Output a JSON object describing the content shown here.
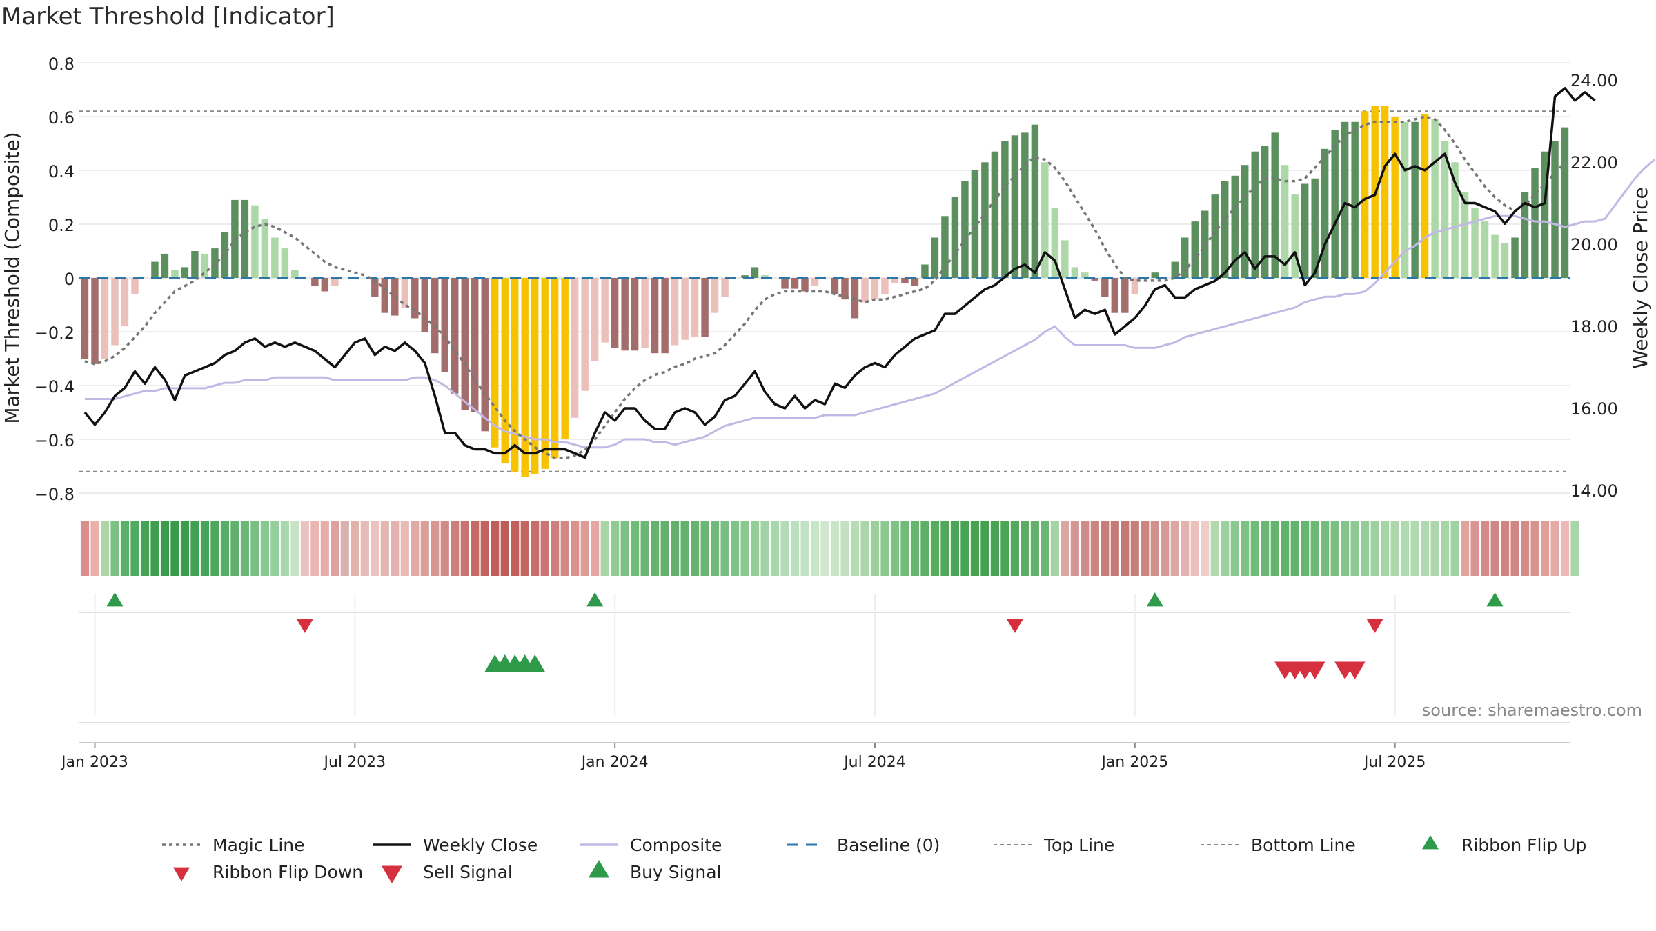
{
  "chart_data": {
    "type": "bar",
    "title": "Market Threshold [Indicator]",
    "ylabel": "Market Threshold (Composite)",
    "y2label": "Weekly Close Price",
    "source": "source: sharemaestro.com",
    "ylim": [
      -0.85,
      0.82
    ],
    "y2lim": [
      13.85,
      24.7
    ],
    "yticks": [
      0.8,
      0.6,
      0.4,
      0.2,
      0,
      -0.2,
      -0.4,
      -0.6,
      -0.8
    ],
    "ytick_labels": [
      "0.8",
      "0.6",
      "0.4",
      "0.2",
      "0",
      "−0.2",
      "−0.4",
      "−0.6",
      "−0.8"
    ],
    "y2ticks": [
      24,
      22,
      20,
      18,
      16,
      14
    ],
    "y2tick_labels": [
      "24.00",
      "22.00",
      "20.00",
      "18.00",
      "16.00",
      "14.00"
    ],
    "xtick_labels": [
      "Jan 2023",
      "Jul 2023",
      "Jan 2024",
      "Jul 2024",
      "Jan 2025",
      "Jul 2025"
    ],
    "xtick_weeks": [
      1,
      27,
      53,
      79,
      105,
      131
    ],
    "top_line": 0.62,
    "bottom_line": -0.72,
    "baseline": 0,
    "grid": true,
    "legend_position": "bottom",
    "legend": [
      "Magic Line",
      "Weekly Close",
      "Composite",
      "Baseline (0)",
      "Top Line",
      "Bottom Line",
      "Ribbon Flip Up",
      "Ribbon Flip Down",
      "Sell Signal",
      "Buy Signal"
    ],
    "colors": {
      "strong_pos": "#5b8f5e",
      "weak_pos": "#acd7a7",
      "strong_neg": "#a36d6b",
      "weak_neg": "#ebbfba",
      "extreme": "#f7c300",
      "close_line": "#111111",
      "composite_line": "#c2b8e6",
      "magic_line": "#777777",
      "baseline": "#2a77a8",
      "up_marker": "#2e9a4a",
      "down_marker": "#d62f3d"
    },
    "series": [
      {
        "name": "Composite",
        "kind": "bar",
        "values": [
          -0.3,
          -0.32,
          -0.3,
          -0.25,
          -0.18,
          -0.06,
          0,
          0.06,
          0.09,
          0.03,
          0.04,
          0.1,
          0.09,
          0.11,
          0.17,
          0.29,
          0.29,
          0.27,
          0.22,
          0.15,
          0.11,
          0.03,
          0,
          -0.03,
          -0.05,
          -0.03,
          0,
          0,
          0,
          -0.07,
          -0.13,
          -0.14,
          -0.11,
          -0.15,
          -0.2,
          -0.28,
          -0.35,
          -0.43,
          -0.49,
          -0.5,
          -0.57,
          -0.63,
          -0.69,
          -0.72,
          -0.74,
          -0.73,
          -0.71,
          -0.67,
          -0.6,
          -0.52,
          -0.42,
          -0.31,
          -0.24,
          -0.26,
          -0.27,
          -0.27,
          -0.26,
          -0.28,
          -0.28,
          -0.25,
          -0.23,
          -0.22,
          -0.22,
          -0.13,
          -0.07,
          0,
          0.01,
          0.04,
          0.01,
          0,
          -0.04,
          -0.04,
          -0.05,
          -0.03,
          0,
          -0.06,
          -0.08,
          -0.15,
          -0.09,
          -0.08,
          -0.06,
          -0.02,
          -0.02,
          -0.03,
          0.05,
          0.15,
          0.23,
          0.3,
          0.36,
          0.4,
          0.43,
          0.47,
          0.51,
          0.53,
          0.54,
          0.57,
          0.43,
          0.26,
          0.14,
          0.04,
          0.02,
          -0.01,
          -0.07,
          -0.13,
          -0.13,
          -0.06,
          0,
          0.02,
          0,
          0.06,
          0.15,
          0.21,
          0.25,
          0.31,
          0.36,
          0.38,
          0.42,
          0.47,
          0.49,
          0.54,
          0.42,
          0.31,
          0.35,
          0.37,
          0.48,
          0.55,
          0.58,
          0.58,
          0.62,
          0.64,
          0.64,
          0.6,
          0.58,
          0.58,
          0.61,
          0.59,
          0.51,
          0.43,
          0.32,
          0.26,
          0.21,
          0.16,
          0.13,
          0.15,
          0.32,
          0.41,
          0.47,
          0.51,
          0.56
        ]
      },
      {
        "name": "Weekly Close",
        "kind": "line",
        "axis": "right",
        "values": [
          15.9,
          15.6,
          15.9,
          16.3,
          16.5,
          16.9,
          16.6,
          17.0,
          16.7,
          16.2,
          16.8,
          16.9,
          17.0,
          17.1,
          17.3,
          17.4,
          17.6,
          17.7,
          17.5,
          17.6,
          17.5,
          17.6,
          17.5,
          17.4,
          17.2,
          17.0,
          17.3,
          17.6,
          17.7,
          17.3,
          17.5,
          17.4,
          17.6,
          17.4,
          17.1,
          16.3,
          15.4,
          15.4,
          15.1,
          15.0,
          15.0,
          14.9,
          14.9,
          15.1,
          14.9,
          14.9,
          15.0,
          15.0,
          15.0,
          14.9,
          14.8,
          15.4,
          15.9,
          15.7,
          16.0,
          16.0,
          15.7,
          15.5,
          15.5,
          15.9,
          16.0,
          15.9,
          15.6,
          15.8,
          16.2,
          16.3,
          16.6,
          16.9,
          16.4,
          16.1,
          16.0,
          16.3,
          16.0,
          16.2,
          16.1,
          16.6,
          16.5,
          16.8,
          17.0,
          17.1,
          17.0,
          17.3,
          17.5,
          17.7,
          17.8,
          17.9,
          18.3,
          18.3,
          18.5,
          18.7,
          18.9,
          19.0,
          19.2,
          19.4,
          19.5,
          19.3,
          19.8,
          19.6,
          18.9,
          18.2,
          18.4,
          18.3,
          18.4,
          17.8,
          18.0,
          18.2,
          18.5,
          18.9,
          19.0,
          18.7,
          18.7,
          18.9,
          19.0,
          19.1,
          19.3,
          19.6,
          19.8,
          19.4,
          19.7,
          19.7,
          19.5,
          19.8,
          19.0,
          19.3,
          20.0,
          20.5,
          21.0,
          20.9,
          21.1,
          21.2,
          21.9,
          22.2,
          21.8,
          21.9,
          21.8,
          22.0,
          22.2,
          21.5,
          21.0,
          21.0,
          20.9,
          20.8,
          20.5,
          20.8,
          21.0,
          20.9,
          21.0,
          23.6,
          23.8,
          23.5,
          23.7,
          23.5
        ]
      },
      {
        "name": "Composite",
        "kind": "line",
        "values": [
          -0.45,
          -0.45,
          -0.45,
          -0.45,
          -0.44,
          -0.43,
          -0.42,
          -0.42,
          -0.41,
          -0.41,
          -0.41,
          -0.41,
          -0.41,
          -0.4,
          -0.39,
          -0.39,
          -0.38,
          -0.38,
          -0.38,
          -0.37,
          -0.37,
          -0.37,
          -0.37,
          -0.37,
          -0.37,
          -0.38,
          -0.38,
          -0.38,
          -0.38,
          -0.38,
          -0.38,
          -0.38,
          -0.38,
          -0.37,
          -0.37,
          -0.38,
          -0.4,
          -0.43,
          -0.46,
          -0.49,
          -0.52,
          -0.55,
          -0.57,
          -0.58,
          -0.59,
          -0.6,
          -0.6,
          -0.61,
          -0.61,
          -0.62,
          -0.63,
          -0.63,
          -0.63,
          -0.62,
          -0.6,
          -0.6,
          -0.6,
          -0.61,
          -0.61,
          -0.62,
          -0.61,
          -0.6,
          -0.59,
          -0.57,
          -0.55,
          -0.54,
          -0.53,
          -0.52,
          -0.52,
          -0.52,
          -0.52,
          -0.52,
          -0.52,
          -0.52,
          -0.51,
          -0.51,
          -0.51,
          -0.51,
          -0.5,
          -0.49,
          -0.48,
          -0.47,
          -0.46,
          -0.45,
          -0.44,
          -0.43,
          -0.41,
          -0.39,
          -0.37,
          -0.35,
          -0.33,
          -0.31,
          -0.29,
          -0.27,
          -0.25,
          -0.23,
          -0.2,
          -0.18,
          -0.22,
          -0.25,
          -0.25,
          -0.25,
          -0.25,
          -0.25,
          -0.25,
          -0.26,
          -0.26,
          -0.26,
          -0.25,
          -0.24,
          -0.22,
          -0.21,
          -0.2,
          -0.19,
          -0.18,
          -0.17,
          -0.16,
          -0.15,
          -0.14,
          -0.13,
          -0.12,
          -0.11,
          -0.09,
          -0.08,
          -0.07,
          -0.07,
          -0.06,
          -0.06,
          -0.05,
          -0.02,
          0.02,
          0.06,
          0.1,
          0.12,
          0.15,
          0.17,
          0.18,
          0.19,
          0.2,
          0.21,
          0.22,
          0.23,
          0.23,
          0.23,
          0.22,
          0.21,
          0.21,
          0.2,
          0.19,
          0.2,
          0.21,
          0.21,
          0.22,
          0.27,
          0.32,
          0.37,
          0.41,
          0.44
        ]
      },
      {
        "name": "Magic Line",
        "kind": "line",
        "values": [
          -0.31,
          -0.32,
          -0.31,
          -0.29,
          -0.26,
          -0.22,
          -0.18,
          -0.13,
          -0.09,
          -0.05,
          -0.03,
          -0.01,
          0.02,
          0.05,
          0.09,
          0.14,
          0.17,
          0.19,
          0.2,
          0.19,
          0.17,
          0.15,
          0.12,
          0.09,
          0.06,
          0.04,
          0.03,
          0.02,
          0.01,
          -0.01,
          -0.04,
          -0.07,
          -0.1,
          -0.12,
          -0.15,
          -0.18,
          -0.22,
          -0.27,
          -0.32,
          -0.38,
          -0.43,
          -0.48,
          -0.53,
          -0.57,
          -0.6,
          -0.63,
          -0.65,
          -0.67,
          -0.67,
          -0.66,
          -0.64,
          -0.6,
          -0.55,
          -0.5,
          -0.45,
          -0.41,
          -0.38,
          -0.36,
          -0.35,
          -0.33,
          -0.32,
          -0.3,
          -0.29,
          -0.28,
          -0.25,
          -0.21,
          -0.17,
          -0.12,
          -0.08,
          -0.06,
          -0.05,
          -0.05,
          -0.05,
          -0.05,
          -0.05,
          -0.06,
          -0.07,
          -0.08,
          -0.09,
          -0.08,
          -0.08,
          -0.07,
          -0.06,
          -0.05,
          -0.04,
          -0.01,
          0.04,
          0.09,
          0.14,
          0.19,
          0.24,
          0.29,
          0.34,
          0.38,
          0.42,
          0.45,
          0.44,
          0.41,
          0.36,
          0.3,
          0.24,
          0.18,
          0.11,
          0.05,
          0.0,
          -0.01,
          -0.01,
          -0.01,
          -0.01,
          0.0,
          0.03,
          0.07,
          0.12,
          0.17,
          0.22,
          0.26,
          0.3,
          0.34,
          0.37,
          0.37,
          0.36,
          0.36,
          0.37,
          0.41,
          0.45,
          0.49,
          0.53,
          0.55,
          0.57,
          0.58,
          0.58,
          0.58,
          0.58,
          0.59,
          0.6,
          0.59,
          0.55,
          0.5,
          0.44,
          0.39,
          0.34,
          0.3,
          0.27,
          0.25,
          0.27,
          0.31,
          0.35,
          0.39,
          0.43
        ]
      }
    ],
    "ribbon": {
      "shades": [
        "#d98d8c",
        "#eab0ac",
        "#aed5a6",
        "#7cc182",
        "#5bb069",
        "#4fab5f",
        "#44a355",
        "#3e9e4f",
        "#3b9a4c",
        "#3a9a4b",
        "#3c9b4d",
        "#41a052",
        "#45a457",
        "#4da85e",
        "#56ad66",
        "#5fb16d",
        "#6bb776",
        "#78bf82",
        "#87c790",
        "#94cf9c",
        "#a7d7ab",
        "#c7e3c5",
        "#e9c3c0",
        "#eab5b2",
        "#e6aeaa",
        "#dea19e",
        "#d9b2b0",
        "#e4b2ad",
        "#e6bcb9",
        "#ebc4c1",
        "#e6b6b2",
        "#e5b3af",
        "#e8bbb7",
        "#e1aaa6",
        "#db9e9b",
        "#d79692",
        "#d18a86",
        "#cc7f7b",
        "#c87470",
        "#c46b67",
        "#c2635f",
        "#c05e5a",
        "#c05c58",
        "#c25f5b",
        "#c46562",
        "#c86e6a",
        "#cb7672",
        "#cf7f7b",
        "#d48884",
        "#d9928e",
        "#de9c98",
        "#e4a7a3",
        "#a8d5a5",
        "#8fcb92",
        "#7cc283",
        "#71bb79",
        "#6ab674",
        "#66b370",
        "#63b16d",
        "#62b06c",
        "#63b16d",
        "#66b370",
        "#6ab674",
        "#70ba79",
        "#77be80",
        "#80c388",
        "#8ac891",
        "#94cd9a",
        "#9fd2a4",
        "#a9d7ad",
        "#b3dbb6",
        "#bcdfbd",
        "#c3e2c3",
        "#c9e5c9",
        "#cee7cd",
        "#c9e5c8",
        "#c1e1c0",
        "#b6dcb6",
        "#a9d6aa",
        "#9bd09d",
        "#8cc991",
        "#7ec284",
        "#72bb79",
        "#67b56f",
        "#5eb067",
        "#57ac60",
        "#51a85b",
        "#4ca557",
        "#48a353",
        "#46a151",
        "#45a150",
        "#47a252",
        "#4ba556",
        "#52a95c",
        "#5aad63",
        "#63b16c",
        "#6cb674",
        "#a5d3a5",
        "#dba7a4",
        "#d39693",
        "#ce8d8a",
        "#ca8581",
        "#c77e7a",
        "#c57a76",
        "#c57975",
        "#c77e7a",
        "#cb8682",
        "#d0908c",
        "#d69b97",
        "#dca7a3",
        "#e3b3af",
        "#e9c0bc",
        "#f0ccc9",
        "#b0d9ad",
        "#9bd19c",
        "#8ac98e",
        "#7cc283",
        "#71bc79",
        "#69b772",
        "#64b46e",
        "#62b26c",
        "#63b36d",
        "#66b570",
        "#6cb875",
        "#73bc7b",
        "#7bc082",
        "#84c58a",
        "#8dc992",
        "#95cd99",
        "#9dd1a0",
        "#a5d4a6",
        "#abd7ab",
        "#afd9af",
        "#b0d9b0",
        "#afd9af",
        "#acd7ac",
        "#a7d5a8",
        "#a1d2a3",
        "#e1a3a0",
        "#d99591",
        "#d48b88",
        "#d08682",
        "#cf8480",
        "#d08682",
        "#d38b87",
        "#d89390",
        "#de9e9a",
        "#e5aaa6",
        "#ecb9b6",
        "#a8d6a8"
      ]
    },
    "markers": [
      {
        "name": "Ribbon Flip Up",
        "row": 0,
        "week": 3
      },
      {
        "name": "Ribbon Flip Up",
        "row": 0,
        "week": 51
      },
      {
        "name": "Ribbon Flip Up",
        "row": 0,
        "week": 107
      },
      {
        "name": "Ribbon Flip Up",
        "row": 0,
        "week": 141
      },
      {
        "name": "Ribbon Flip Down",
        "row": 1,
        "week": 22
      },
      {
        "name": "Ribbon Flip Down",
        "row": 1,
        "week": 93
      },
      {
        "name": "Ribbon Flip Down",
        "row": 1,
        "week": 129
      },
      {
        "name": "Buy Signal",
        "row": 2,
        "week": 41
      },
      {
        "name": "Buy Signal",
        "row": 2,
        "week": 42
      },
      {
        "name": "Buy Signal",
        "row": 2,
        "week": 43
      },
      {
        "name": "Buy Signal",
        "row": 2,
        "week": 44
      },
      {
        "name": "Buy Signal",
        "row": 2,
        "week": 45
      },
      {
        "name": "Sell Signal",
        "row": 3,
        "week": 120
      },
      {
        "name": "Sell Signal",
        "row": 3,
        "week": 121
      },
      {
        "name": "Sell Signal",
        "row": 3,
        "week": 122
      },
      {
        "name": "Sell Signal",
        "row": 3,
        "week": 123
      },
      {
        "name": "Sell Signal",
        "row": 3,
        "week": 126
      },
      {
        "name": "Sell Signal",
        "row": 3,
        "week": 127
      }
    ]
  }
}
